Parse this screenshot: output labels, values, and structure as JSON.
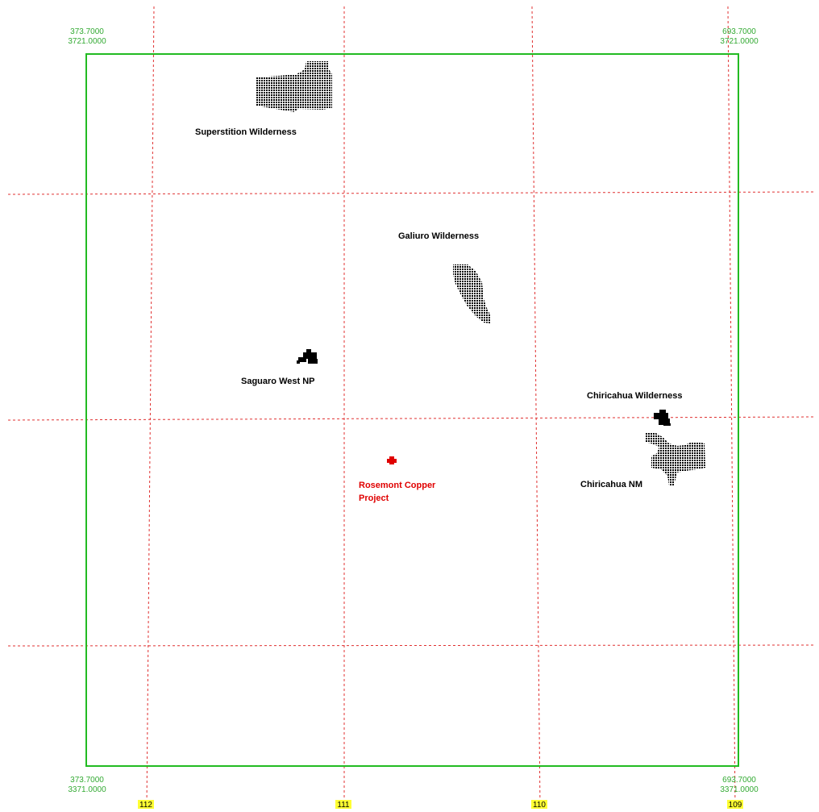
{
  "corners": {
    "top_left": [
      "373.7000",
      "3721.0000"
    ],
    "top_right": [
      "693.7000",
      "3721.0000"
    ],
    "bottom_left": [
      "373.7000",
      "3371.0000"
    ],
    "bottom_right": [
      "693.7000",
      "3371.0000"
    ]
  },
  "longitude_labels": [
    "112",
    "111",
    "110",
    "109"
  ],
  "places": {
    "superstition": "Superstition Wilderness",
    "galiuro": "Galiuro Wilderness",
    "saguaro": "Saguaro West NP",
    "chiricahua_wilderness": "Chiricahua Wilderness",
    "chiricahua_nm": "Chiricahua NM",
    "rosemont_line1": "Rosemont Copper",
    "rosemont_line2": "Project"
  },
  "colors": {
    "boundary": "#22bb22",
    "graticule": "#e03030",
    "label_highlight": "#ffff33",
    "project": "#e00000"
  }
}
